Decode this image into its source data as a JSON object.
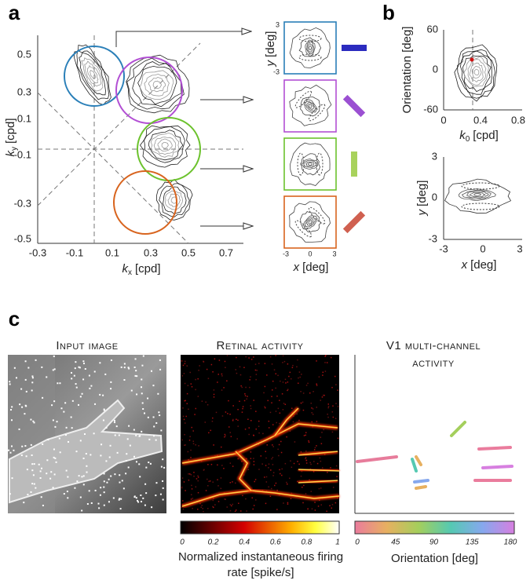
{
  "panel_a": {
    "label": "a",
    "x_label": {
      "symbol": "k",
      "sub": "x",
      "unit": "[cpd]"
    },
    "y_label": {
      "symbol": "k",
      "sub": "y",
      "unit": "[cpd]"
    },
    "x_ticks": [
      "-0.3",
      "-0.1",
      "0.1",
      "0.3",
      "0.5",
      "0.7"
    ],
    "y_ticks": [
      "0.5",
      "0.3",
      "0.1",
      "-0.1",
      "-0.3",
      "-0.5"
    ],
    "inset_y_label": {
      "symbol": "y",
      "unit": "[deg]"
    },
    "inset_x_label": {
      "symbol": "x",
      "unit": "[deg]"
    },
    "inset_y_ticks": [
      "3",
      "-3"
    ],
    "inset_x_ticks": [
      "-3",
      "0",
      "3"
    ]
  },
  "panel_b": {
    "label": "b",
    "top": {
      "y_label": "Orientation [deg]",
      "y_ticks": [
        "60",
        "0",
        "-60"
      ],
      "x_ticks": [
        "0",
        "0.4",
        "0.8"
      ],
      "x_label": {
        "symbol": "k",
        "sub": "0",
        "unit": "[cpd]"
      }
    },
    "bottom": {
      "y_label": {
        "symbol": "y",
        "unit": "[deg]"
      },
      "y_ticks": [
        "3",
        "0",
        "-3"
      ],
      "x_ticks": [
        "-3",
        "0",
        "3"
      ],
      "x_label": {
        "symbol": "x",
        "unit": "[deg]"
      }
    }
  },
  "panel_c": {
    "label": "c",
    "input_title": "Input image",
    "retinal_title": "Retinal activity",
    "v1_title": "V1 multi-channel activity",
    "retinal_colorbar": {
      "ticks": [
        "0",
        "0.2",
        "0.4",
        "0.6",
        "0.8",
        "1"
      ],
      "label": "Normalized instantaneous firing rate [spike/s]"
    },
    "orientation_colorbar": {
      "ticks": [
        "0",
        "45",
        "90",
        "135",
        "180"
      ],
      "label": "Orientation [deg]"
    }
  }
}
